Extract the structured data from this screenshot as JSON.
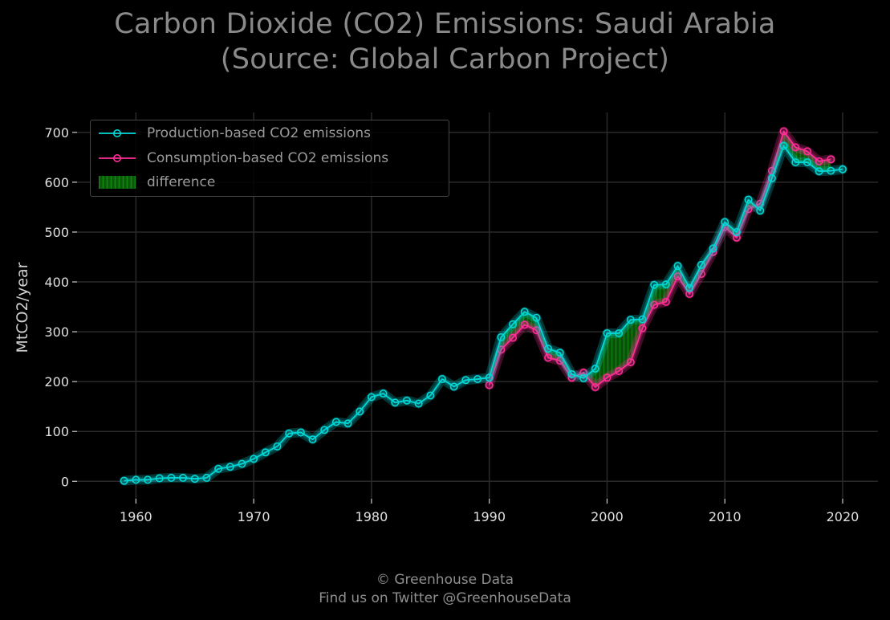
{
  "title_line1": "Carbon Dioxide (CO2) Emissions: Saudi Arabia",
  "title_line2": "(Source: Global Carbon Project)",
  "footer_line1": "© Greenhouse Data",
  "footer_line2": "Find us on Twitter @GreenhouseData",
  "colors": {
    "production": "#00d8d8",
    "consumption": "#ff2e97",
    "difference": "#0b6b0b",
    "grid": "#2a2a2a",
    "background": "#000000"
  },
  "chart_data": {
    "type": "line",
    "title": "Carbon Dioxide (CO2) Emissions: Saudi Arabia (Source: Global Carbon Project)",
    "xlabel": "",
    "ylabel": "MtCO2/year",
    "xlim": [
      1955,
      2023
    ],
    "ylim": [
      -35,
      740
    ],
    "xticks": [
      1960,
      1970,
      1980,
      1990,
      2000,
      2010,
      2020
    ],
    "yticks": [
      0,
      100,
      200,
      300,
      400,
      500,
      600,
      700
    ],
    "grid": true,
    "legend_position": "top-left",
    "series": [
      {
        "name": "Production-based CO2 emissions",
        "x": [
          1959,
          1960,
          1961,
          1962,
          1963,
          1964,
          1965,
          1966,
          1967,
          1968,
          1969,
          1970,
          1971,
          1972,
          1973,
          1974,
          1975,
          1976,
          1977,
          1978,
          1979,
          1980,
          1981,
          1982,
          1983,
          1984,
          1985,
          1986,
          1987,
          1988,
          1989,
          1990,
          1991,
          1992,
          1993,
          1994,
          1995,
          1996,
          1997,
          1998,
          1999,
          2000,
          2001,
          2002,
          2003,
          2004,
          2005,
          2006,
          2007,
          2008,
          2009,
          2010,
          2011,
          2012,
          2013,
          2014,
          2015,
          2016,
          2017,
          2018,
          2019,
          2020
        ],
        "y": [
          1,
          3,
          3,
          6,
          7,
          7,
          5,
          7,
          25,
          29,
          35,
          45,
          58,
          70,
          96,
          98,
          84,
          103,
          119,
          116,
          140,
          169,
          176,
          158,
          162,
          156,
          172,
          205,
          190,
          203,
          205,
          208,
          289,
          315,
          340,
          328,
          266,
          258,
          215,
          207,
          226,
          297,
          297,
          324,
          325,
          394,
          395,
          432,
          388,
          434,
          467,
          520,
          500,
          565,
          543,
          608,
          673,
          640,
          640,
          622,
          623,
          626
        ]
      },
      {
        "name": "Consumption-based CO2 emissions",
        "x": [
          1990,
          1991,
          1992,
          1993,
          1994,
          1995,
          1996,
          1997,
          1998,
          1999,
          2000,
          2001,
          2002,
          2003,
          2004,
          2005,
          2006,
          2007,
          2008,
          2009,
          2010,
          2011,
          2012,
          2013,
          2014,
          2015,
          2016,
          2017,
          2018,
          2019
        ],
        "y": [
          193,
          264,
          288,
          314,
          303,
          248,
          242,
          208,
          218,
          189,
          208,
          221,
          239,
          307,
          354,
          360,
          411,
          376,
          416,
          460,
          510,
          489,
          546,
          557,
          623,
          702,
          670,
          662,
          642,
          646
        ]
      },
      {
        "name": "difference"
      }
    ]
  }
}
